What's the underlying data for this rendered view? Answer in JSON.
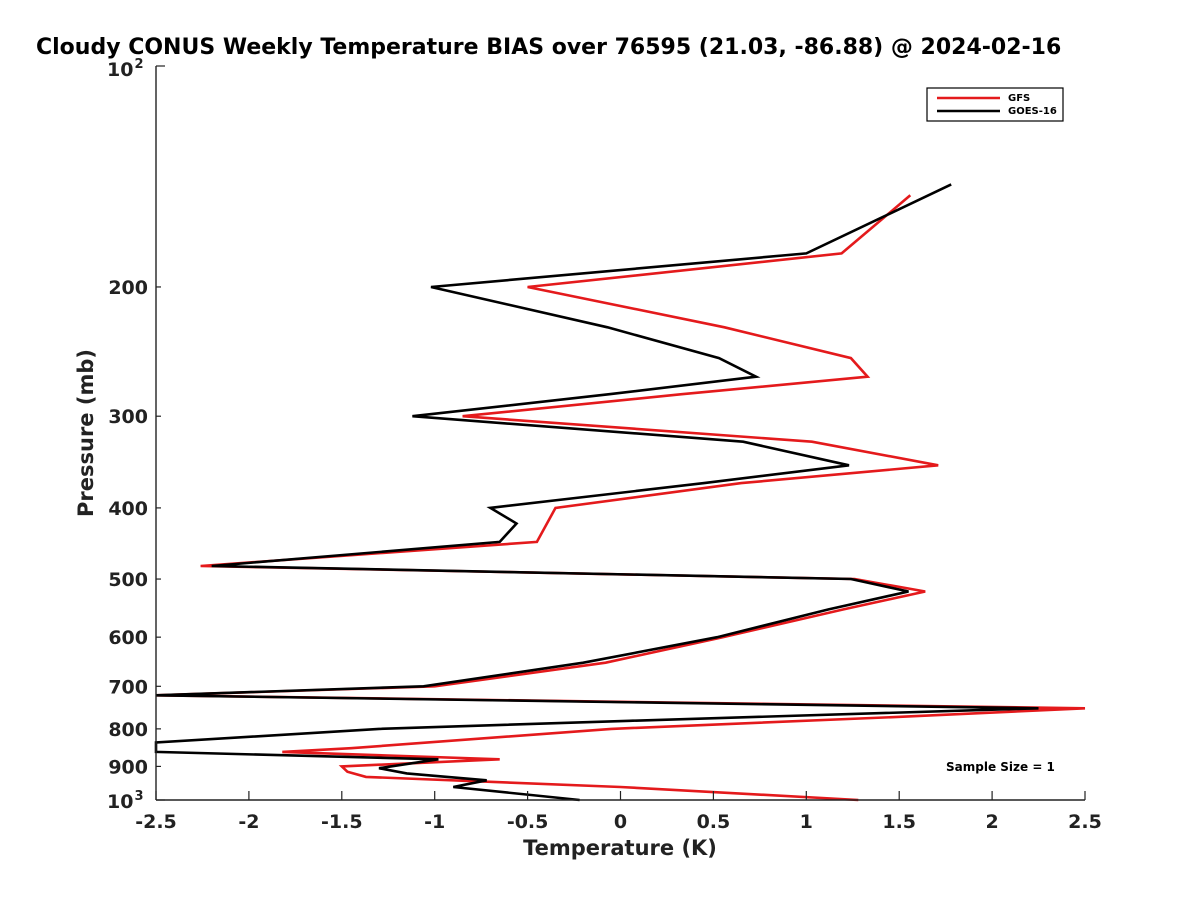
{
  "chart_data": {
    "type": "line",
    "title": "Cloudy CONUS Weekly Temperature BIAS over 76595 (21.03, -86.88) @ 2024-02-16",
    "xlabel": "Temperature (K)",
    "ylabel": "Pressure (mb)",
    "xlim": [
      -2.5,
      2.5
    ],
    "ylim": [
      100,
      1000
    ],
    "yscale": "log",
    "y_reversed": true,
    "x_ticks": [
      -2.5,
      -2,
      -1.5,
      -1,
      -0.5,
      0,
      0.5,
      1,
      1.5,
      2,
      2.5
    ],
    "x_tick_labels": [
      "-2.5",
      "-2",
      "-1.5",
      "-1",
      "-0.5",
      "0",
      "0.5",
      "1",
      "1.5",
      "2",
      "2.5"
    ],
    "y_ticks": [
      200,
      300,
      400,
      500,
      600,
      700,
      800,
      900
    ],
    "y_tick_labels": [
      "200",
      "300",
      "400",
      "500",
      "600",
      "700",
      "800",
      "900"
    ],
    "y_end_labels": {
      "top_base": "10",
      "top_exp": "2",
      "bottom_base": "10",
      "bottom_exp": "3"
    },
    "grid": false,
    "legend_position": "top-right",
    "annotation": "Sample Size = 1",
    "series": [
      {
        "name": "GFS",
        "color": "#e41a1c",
        "points": [
          [
            1.56,
            150
          ],
          [
            1.19,
            180
          ],
          [
            -0.5,
            200
          ],
          [
            0.56,
            227
          ],
          [
            1.24,
            250
          ],
          [
            1.33,
            265
          ],
          [
            0.33,
            280
          ],
          [
            -0.85,
            300
          ],
          [
            1.03,
            325
          ],
          [
            1.71,
            350
          ],
          [
            0.65,
            370
          ],
          [
            -0.35,
            400
          ],
          [
            -0.45,
            445
          ],
          [
            -2.26,
            480
          ],
          [
            1.26,
            500
          ],
          [
            1.64,
            520
          ],
          [
            1.2,
            550
          ],
          [
            0.55,
            600
          ],
          [
            -0.08,
            650
          ],
          [
            -1.0,
            700
          ],
          [
            -2.5,
            720
          ],
          [
            2.5,
            750
          ],
          [
            1.52,
            770
          ],
          [
            -0.05,
            800
          ],
          [
            -1.45,
            850
          ],
          [
            -1.82,
            860
          ],
          [
            -0.65,
            880
          ],
          [
            -1.5,
            900
          ],
          [
            -1.47,
            915
          ],
          [
            -1.37,
            930
          ],
          [
            0.0,
            960
          ],
          [
            1.28,
            1000
          ]
        ]
      },
      {
        "name": "GOES-16",
        "color": "#000000",
        "points": [
          [
            1.78,
            145
          ],
          [
            1.0,
            180
          ],
          [
            -1.02,
            200
          ],
          [
            -0.07,
            227
          ],
          [
            0.53,
            250
          ],
          [
            0.73,
            265
          ],
          [
            -0.06,
            280
          ],
          [
            -1.12,
            300
          ],
          [
            0.66,
            325
          ],
          [
            1.23,
            350
          ],
          [
            0.45,
            370
          ],
          [
            -0.7,
            400
          ],
          [
            -0.56,
            420
          ],
          [
            -0.65,
            445
          ],
          [
            -2.2,
            480
          ],
          [
            1.24,
            500
          ],
          [
            1.55,
            520
          ],
          [
            1.12,
            550
          ],
          [
            0.52,
            600
          ],
          [
            -0.2,
            650
          ],
          [
            -1.06,
            700
          ],
          [
            -2.5,
            720
          ],
          [
            2.25,
            750
          ],
          [
            0.05,
            780
          ],
          [
            -1.3,
            800
          ],
          [
            -2.5,
            835
          ],
          [
            -2.5,
            860
          ],
          [
            -0.98,
            880
          ],
          [
            -1.3,
            905
          ],
          [
            -1.15,
            920
          ],
          [
            -0.72,
            940
          ],
          [
            -0.9,
            960
          ],
          [
            -0.22,
            1000
          ]
        ]
      }
    ]
  }
}
